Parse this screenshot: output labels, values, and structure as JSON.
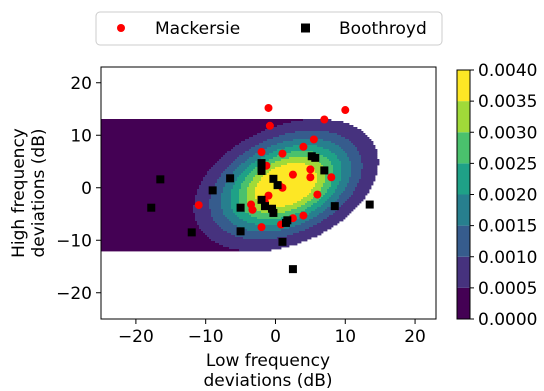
{
  "chart_data": {
    "type": "scatter",
    "xlabel_lines": [
      "Low frequency",
      "deviations (dB)"
    ],
    "ylabel_lines": [
      "High frequency",
      "deviations (dB)"
    ],
    "xlim": [
      -25,
      23
    ],
    "ylim": [
      -25,
      23
    ],
    "xticks": [
      -20,
      -10,
      0,
      10,
      20
    ],
    "yticks": [
      -20,
      -10,
      0,
      10,
      20
    ],
    "xtick_labels": [
      "−20",
      "−10",
      "0",
      "10",
      "20"
    ],
    "ytick_labels": [
      "−20",
      "−10",
      "0",
      "10",
      "20"
    ],
    "grid": false,
    "legend": {
      "placement": "top-center-outside",
      "columns": 2
    },
    "background_density": {
      "type": "contourf",
      "center": [
        1.5,
        0.5
      ],
      "std_x": 6.3,
      "std_y": 6.0,
      "correlation": 0.35,
      "levels": [
        0,
        0.0005,
        0.001,
        0.0015,
        0.002,
        0.0025,
        0.003,
        0.0035,
        0.004
      ],
      "level_colors": [
        "#440154",
        "#46327e",
        "#365c8d",
        "#277f8e",
        "#1fa187",
        "#4ac16d",
        "#a0da39",
        "#fde725"
      ],
      "colorbar_labels": [
        "0.0000",
        "0.0005",
        "0.0010",
        "0.0015",
        "0.0020",
        "0.0025",
        "0.0030",
        "0.0035",
        "0.0040"
      ]
    },
    "series": [
      {
        "name": "Mackersie",
        "marker": "circle",
        "color": "#ff0000",
        "points": [
          [
            -1,
            15.2
          ],
          [
            10,
            14.8
          ],
          [
            -0.8,
            11.8
          ],
          [
            7,
            13
          ],
          [
            5.5,
            9.2
          ],
          [
            4,
            7.8
          ],
          [
            -2,
            6.8
          ],
          [
            1,
            6.5
          ],
          [
            -1.3,
            4.2
          ],
          [
            2.5,
            2.5
          ],
          [
            0.5,
            0.5
          ],
          [
            1,
            0
          ],
          [
            5,
            3.5
          ],
          [
            5,
            2
          ],
          [
            8,
            2
          ],
          [
            6,
            -1.3
          ],
          [
            -1,
            -1.5
          ],
          [
            -1.5,
            -2.8
          ],
          [
            -3.5,
            -3.2
          ],
          [
            -3.3,
            -4.2
          ],
          [
            -11,
            -3.3
          ],
          [
            -2,
            -7.5
          ],
          [
            2.5,
            -5.8
          ],
          [
            4,
            -5.3
          ],
          [
            0.8,
            -7
          ]
        ]
      },
      {
        "name": "Boothroyd",
        "marker": "square",
        "color": "#000000",
        "points": [
          [
            -16.5,
            1.6
          ],
          [
            -17.8,
            -3.8
          ],
          [
            -12,
            -8.5
          ],
          [
            -9,
            -0.5
          ],
          [
            -6.5,
            1.8
          ],
          [
            -5,
            -3.8
          ],
          [
            -5,
            -8.3
          ],
          [
            -2,
            4.7
          ],
          [
            -2,
            3.2
          ],
          [
            -0.3,
            1.7
          ],
          [
            0.3,
            0.5
          ],
          [
            -2,
            -2.3
          ],
          [
            -1.5,
            -3.5
          ],
          [
            -0.3,
            -4.8
          ],
          [
            -0.5,
            -4
          ],
          [
            1.7,
            -6.2
          ],
          [
            1.5,
            -6.7
          ],
          [
            1,
            -10.3
          ],
          [
            2.5,
            -15.5
          ],
          [
            5.2,
            6
          ],
          [
            5.7,
            5.7
          ],
          [
            7,
            3.3
          ],
          [
            8.5,
            -3.5
          ],
          [
            13.5,
            -3.2
          ]
        ]
      }
    ]
  }
}
